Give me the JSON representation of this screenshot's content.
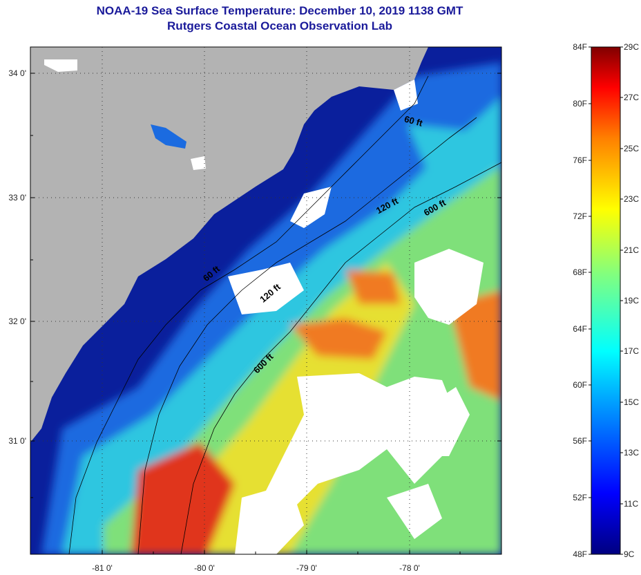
{
  "title": {
    "line1": "NOAA-19 Sea Surface Temperature:  December 10, 2019 1138 GMT",
    "line2": "Rutgers Coastal Ocean Observation Lab"
  },
  "map": {
    "lat_labels": [
      "34 0'",
      "33 0'",
      "32 0'",
      "31 0'"
    ],
    "lon_labels": [
      "-81 0'",
      "-80 0'",
      "-79 0'",
      "-78 0'"
    ],
    "contours": [
      "60 ft",
      "120 ft",
      "600 ft",
      "60 ft",
      "120 ft",
      "600 ft"
    ],
    "colors": {
      "land": "#b3b3b3",
      "cloud": "#ffffff",
      "cold": "#0a1f9c",
      "cool": "#1b6be0",
      "mid": "#2fc6e0",
      "mild": "#7fe07a",
      "warm": "#e6e030",
      "hot": "#f07a20",
      "hottest": "#e0361a"
    }
  },
  "colorbar": {
    "fahrenheit": [
      "84F",
      "80F",
      "76F",
      "72F",
      "68F",
      "64F",
      "60F",
      "56F",
      "52F",
      "48F"
    ],
    "celsius": [
      "29C",
      "27C",
      "25C",
      "23C",
      "21C",
      "19C",
      "17C",
      "15C",
      "13C",
      "11C",
      "9C"
    ]
  }
}
